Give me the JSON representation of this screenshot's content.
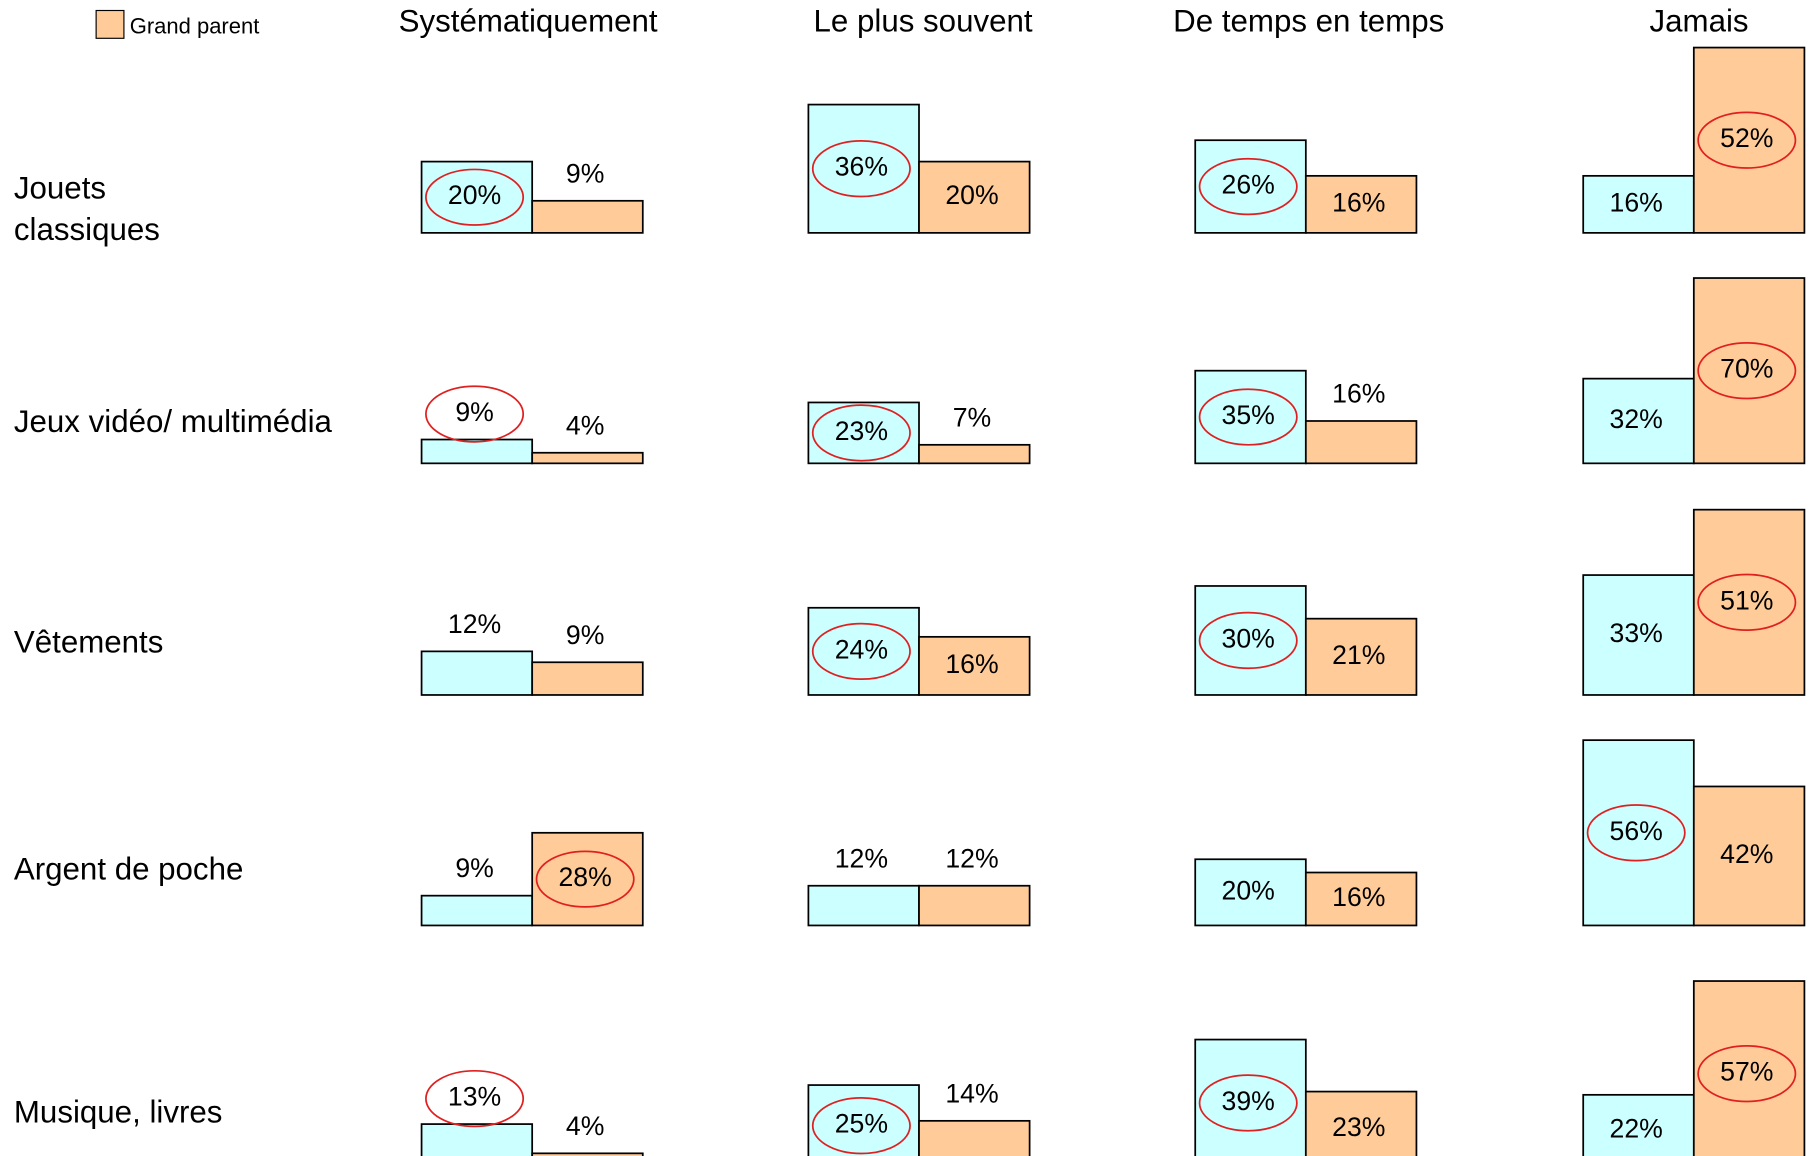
{
  "chart_data": {
    "type": "bar",
    "categories": [
      "Systématiquement",
      "Le plus souvent",
      "De temps en temps",
      "Jamais"
    ],
    "rows": [
      [
        "Jouets",
        "classiques"
      ],
      [
        "Jeux vidéo/ multimédia"
      ],
      [
        "Vêtements"
      ],
      [
        "Argent de poche"
      ],
      [
        "Musique, livres"
      ]
    ],
    "highlight_color": "#e02020",
    "series": [
      {
        "color": "#ccffff",
        "values": [
          [
            20,
            36,
            26,
            16
          ],
          [
            9,
            23,
            35,
            32
          ],
          [
            12,
            24,
            30,
            33
          ],
          [
            9,
            12,
            20,
            56
          ],
          [
            13,
            25,
            39,
            22
          ]
        ],
        "value_labels": [
          [
            "20%",
            "36%",
            "26%",
            "16%"
          ],
          [
            "9%",
            "23%",
            "35%",
            "32%"
          ],
          [
            "12%",
            "24%",
            "30%",
            "33%"
          ],
          [
            "9%",
            "12%",
            "20%",
            "56%"
          ],
          [
            "13%",
            "25%",
            "39%",
            "22%"
          ]
        ],
        "circled": [
          [
            true,
            true,
            true,
            false
          ],
          [
            true,
            true,
            true,
            false
          ],
          [
            false,
            true,
            true,
            false
          ],
          [
            false,
            false,
            false,
            true
          ],
          [
            true,
            true,
            true,
            false
          ]
        ]
      },
      {
        "name": "Grand parent",
        "color": "#ffcc99",
        "values": [
          [
            9,
            20,
            16,
            52
          ],
          [
            4,
            7,
            16,
            70
          ],
          [
            9,
            16,
            21,
            51
          ],
          [
            28,
            12,
            16,
            42
          ],
          [
            4,
            14,
            23,
            57
          ]
        ],
        "value_labels": [
          [
            "9%",
            "20%",
            "16%",
            "52%"
          ],
          [
            "4%",
            "7%",
            "16%",
            "70%"
          ],
          [
            "9%",
            "16%",
            "21%",
            "51%"
          ],
          [
            "28%",
            "12%",
            "16%",
            "42%"
          ],
          [
            "4%",
            "14%",
            "23%",
            "57%"
          ]
        ],
        "circled": [
          [
            false,
            false,
            false,
            true
          ],
          [
            false,
            false,
            false,
            true
          ],
          [
            false,
            false,
            false,
            true
          ],
          [
            true,
            false,
            false,
            false
          ],
          [
            false,
            false,
            false,
            true
          ]
        ]
      }
    ]
  }
}
